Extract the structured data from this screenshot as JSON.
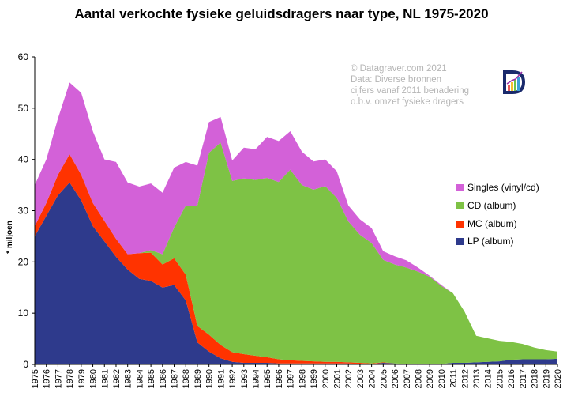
{
  "chart_data": {
    "type": "area",
    "stacked": true,
    "title": "Aantal verkochte fysieke geluidsdragers naar type, NL 1975-2020",
    "ylabel": "* miljoen",
    "xlabel": "",
    "ylim": [
      0,
      60
    ],
    "yticks": [
      0,
      10,
      20,
      30,
      40,
      50,
      60
    ],
    "legend_position": "right",
    "grid": false,
    "x": [
      "1975",
      "1976",
      "1977",
      "1978",
      "1979",
      "1980",
      "1981",
      "1982",
      "1983",
      "1984",
      "1985",
      "1986",
      "1987",
      "1988",
      "1989",
      "1990",
      "1991",
      "1992",
      "1993",
      "1994",
      "1995",
      "1996",
      "1997",
      "1998",
      "1999",
      "2000",
      "2001",
      "2002",
      "2003",
      "2004",
      "2005",
      "2006",
      "2007",
      "2008",
      "2009",
      "2010",
      "2011",
      "2012",
      "2013",
      "2014",
      "2015",
      "2016",
      "2017",
      "2018",
      "2019",
      "2020"
    ],
    "series": [
      {
        "name": "LP (album)",
        "color": "#2e3a8c",
        "values": [
          25,
          29,
          33,
          35.5,
          32,
          27,
          24,
          21,
          18.5,
          16.7,
          16.3,
          15,
          15.5,
          12.5,
          4.3,
          2.5,
          1.2,
          0.5,
          0.3,
          0.3,
          0.3,
          0.2,
          0.2,
          0.2,
          0.2,
          0.2,
          0.2,
          0.2,
          0.1,
          0.1,
          0.3,
          0.2,
          0.1,
          0.1,
          0.1,
          0.1,
          0.3,
          0.3,
          0.4,
          0.5,
          0.6,
          0.9,
          1.0,
          1.0,
          1.0,
          1.1
        ]
      },
      {
        "name": "MC (album)",
        "color": "#ff3300",
        "values": [
          2,
          2.5,
          4,
          5.5,
          5,
          4.5,
          4,
          3.5,
          3,
          5,
          5.5,
          4.5,
          5.2,
          5,
          3.2,
          3.3,
          2.6,
          1.9,
          1.7,
          1.4,
          1.1,
          0.8,
          0.6,
          0.5,
          0.4,
          0.3,
          0.3,
          0.2,
          0.2,
          0.1,
          0.1,
          0,
          0,
          0,
          0,
          0,
          0,
          0,
          0,
          0,
          0,
          0,
          0,
          0,
          0,
          0
        ]
      },
      {
        "name": "CD (album)",
        "color": "#7ec245",
        "values": [
          0,
          0,
          0,
          0,
          0,
          0,
          0,
          0,
          0,
          0,
          0.5,
          2,
          6,
          13.5,
          23.5,
          35.5,
          39.5,
          33.4,
          34.3,
          34.3,
          35,
          34.6,
          37.2,
          34.3,
          33.5,
          34.3,
          32,
          27.5,
          25,
          23.5,
          20,
          19.3,
          18.8,
          18,
          17,
          15.2,
          13.6,
          10,
          5.2,
          4.6,
          4,
          3.5,
          3,
          2.3,
          1.8,
          1.4
        ]
      },
      {
        "name": "Singles (vinyl/cd)",
        "color": "#d361d8",
        "values": [
          8,
          8.5,
          11,
          14,
          16,
          14,
          12,
          15,
          14,
          13,
          13,
          12,
          11.7,
          8.5,
          7.8,
          6,
          5,
          4,
          6,
          6,
          8,
          8,
          7.5,
          6.5,
          5.5,
          5.2,
          5.2,
          3.1,
          3,
          2.9,
          1.7,
          1.6,
          1.4,
          0.8,
          0.2,
          0.2,
          0,
          0,
          0,
          0,
          0,
          0,
          0,
          0,
          0,
          0
        ]
      }
    ],
    "annotations": [
      "© Datagraver.com 2021",
      "Data: Diverse bronnen",
      "cijfers vanaf 2011 benadering",
      "o.b.v. omzet fysieke dragers"
    ]
  }
}
